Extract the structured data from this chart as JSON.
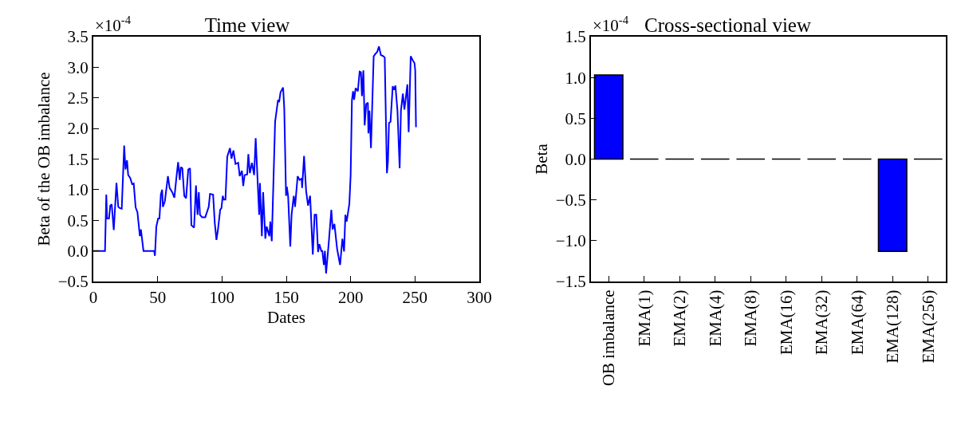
{
  "chart_data": [
    {
      "type": "line",
      "title": "Time view",
      "xlabel": "Dates",
      "ylabel": "Beta of the OB imbalance",
      "annotations": [
        "×10$^{-4}$"
      ],
      "color": "#0000ff",
      "grid": false,
      "marker": "none",
      "line_style": "solid",
      "x": [
        0,
        9.1,
        10.1,
        10.7,
        12.2,
        13.2,
        14.3,
        15.9,
        18,
        19.4,
        20.5,
        22.1,
        24,
        25,
        26.2,
        27.1,
        28.7,
        30.2,
        31.4,
        32.9,
        34.3,
        36.2,
        37,
        39,
        47.3,
        47.9,
        49,
        50.4,
        51.4,
        52.5,
        53.5,
        54.1,
        55.6,
        58,
        59.3,
        61.3,
        63,
        64.5,
        65.9,
        67.2,
        68,
        69.2,
        70.7,
        72.1,
        73.8,
        75.2,
        76.2,
        78.3,
        79.8,
        81,
        82,
        82.9,
        84.5,
        87,
        89.7,
        90.7,
        93.1,
        94.4,
        95.7,
        96.9,
        98.6,
        99.6,
        100.6,
        101.4,
        102.7,
        104.1,
        106.2,
        107.4,
        108.9,
        110.5,
        112.6,
        113.8,
        115.5,
        116.5,
        117.6,
        119.6,
        120.5,
        121.7,
        123.3,
        125,
        126.2,
        128.9,
        129.5,
        131,
        132,
        133.7,
        134.7,
        136.8,
        137.6,
        138.7,
        141.3,
        143.6,
        144.4,
        145.5,
        147.5,
        148.4,
        149.8,
        150.4,
        151.4,
        153.1,
        154.1,
        155.8,
        156.8,
        158.8,
        160.3,
        161.9,
        162.3,
        163.8,
        165.4,
        166.9,
        168.5,
        170.6,
        172,
        173.3,
        174.7,
        175.7,
        177.2,
        178,
        179.2,
        180,
        180.9,
        182.9,
        185,
        186,
        187.4,
        189.5,
        191.8,
        193.6,
        194.9,
        195.9,
        196.9,
        199,
        200,
        201,
        201.9,
        202.7,
        203.9,
        205.6,
        207,
        208,
        208.8,
        209.9,
        210.9,
        212.1,
        213.4,
        213.8,
        214.6,
        215.8,
        217.9,
        219.3,
        220.6,
        222,
        223.5,
        225.5,
        226.5,
        228.2,
        229,
        229.8,
        231,
        232.7,
        233.7,
        234.8,
        236.4,
        238.1,
        239.1,
        240.6,
        241.8,
        244.1,
        245.1,
        246.7,
        248.4,
        249.6,
        250.2,
        250.8
      ],
      "values": [
        0,
        0,
        0.92,
        0.53,
        0.53,
        0.74,
        0.76,
        0.34,
        1.11,
        0.72,
        0.7,
        0.69,
        1.72,
        1.33,
        1.48,
        1.24,
        1.19,
        1.09,
        1.1,
        0.71,
        0.63,
        0.24,
        0.35,
        0,
        0,
        -0.08,
        0.4,
        0.53,
        0.53,
        0.92,
        1,
        0.72,
        0.81,
        1.22,
        1.03,
        0.96,
        0.87,
        1.18,
        1.45,
        1.16,
        1.37,
        1.35,
        0.9,
        0.86,
        1.33,
        1.35,
        0.42,
        0.38,
        1.07,
        0.59,
        0.96,
        0.59,
        0.55,
        0.55,
        0.72,
        0.93,
        0.92,
        0.46,
        0.18,
        0.35,
        0.67,
        0.7,
        0.9,
        0.84,
        0.84,
        1.54,
        1.68,
        1.51,
        1.64,
        1.42,
        1.44,
        1.22,
        1.31,
        1.06,
        1.24,
        1.25,
        1.58,
        1.27,
        1.44,
        1.24,
        1.84,
        0.59,
        1.11,
        0.24,
        0.96,
        0.2,
        0.4,
        0.24,
        0.48,
        0.16,
        2.11,
        2.47,
        2.43,
        2.59,
        2.67,
        2.33,
        0.9,
        1.05,
        0.9,
        0.07,
        0.59,
        0.9,
        0.72,
        1.22,
        1.16,
        1.18,
        1.03,
        1.55,
        0.98,
        0.74,
        0.9,
        -0.06,
        0.59,
        0.59,
        -0.02,
        0.11,
        0,
        0,
        -0.23,
        0,
        -0.37,
        0.11,
        0.67,
        0.35,
        0.44,
        0.03,
        -0.23,
        0.2,
        -0.01,
        0.59,
        0.48,
        0.77,
        1.24,
        2.46,
        2.61,
        2.47,
        2.66,
        2.61,
        2.93,
        2.92,
        2.53,
        2.95,
        2.05,
        2.4,
        2.42,
        1.92,
        2.29,
        1.68,
        3.18,
        3.22,
        3.25,
        3.34,
        3.2,
        3.18,
        3.16,
        1.27,
        1.46,
        2.09,
        2.11,
        2.69,
        2.63,
        2.7,
        2.29,
        1.35,
        2.29,
        2.57,
        2.31,
        2.72,
        1.94,
        3.18,
        3.11,
        3.07,
        2.95,
        2.02
      ],
      "xlim": [
        0,
        300
      ],
      "xticks": [
        0,
        50,
        100,
        150,
        200,
        250,
        300
      ],
      "ylim": [
        -0.5,
        3.5
      ],
      "yticks": [
        {
          "value": -0.5,
          "label": "−0.5"
        },
        {
          "value": 0,
          "label": "0.0"
        },
        {
          "value": 0.5,
          "label": "0.5"
        },
        {
          "value": 1,
          "label": "1.0"
        },
        {
          "value": 1.5,
          "label": "1.5"
        },
        {
          "value": 2,
          "label": "2.0"
        },
        {
          "value": 2.5,
          "label": "2.5"
        },
        {
          "value": 3,
          "label": "3.0"
        },
        {
          "value": 3.5,
          "label": "3.5"
        }
      ]
    },
    {
      "type": "bar",
      "title": "Cross-sectional view",
      "ylabel": "Beta",
      "annotations": [
        "×10$^{-4}$"
      ],
      "colors": [
        "#0000ff",
        "#000000",
        "#000000",
        "#000000",
        "#000000",
        "#000000",
        "#000000",
        "#000000",
        "#0000ff",
        "#000000"
      ],
      "grid": false,
      "categories": [
        "OB imbalance",
        "EMA(1)",
        "EMA(2)",
        "EMA(4)",
        "EMA(8)",
        "EMA(16)",
        "EMA(32)",
        "EMA(64)",
        "EMA(128)",
        "EMA(256)"
      ],
      "values": [
        1.03,
        0,
        0,
        0,
        0,
        0,
        0,
        0,
        -1.13,
        0
      ],
      "ylim": [
        -1.5,
        1.5
      ],
      "yticks": [
        {
          "value": -1.5,
          "label": "−1.5"
        },
        {
          "value": -1,
          "label": "−1.0"
        },
        {
          "value": -0.5,
          "label": "−0.5"
        },
        {
          "value": 0,
          "label": "0.0"
        },
        {
          "value": 0.5,
          "label": "0.5"
        },
        {
          "value": 1,
          "label": "1.0"
        },
        {
          "value": 1.5,
          "label": "1.5"
        }
      ]
    }
  ]
}
